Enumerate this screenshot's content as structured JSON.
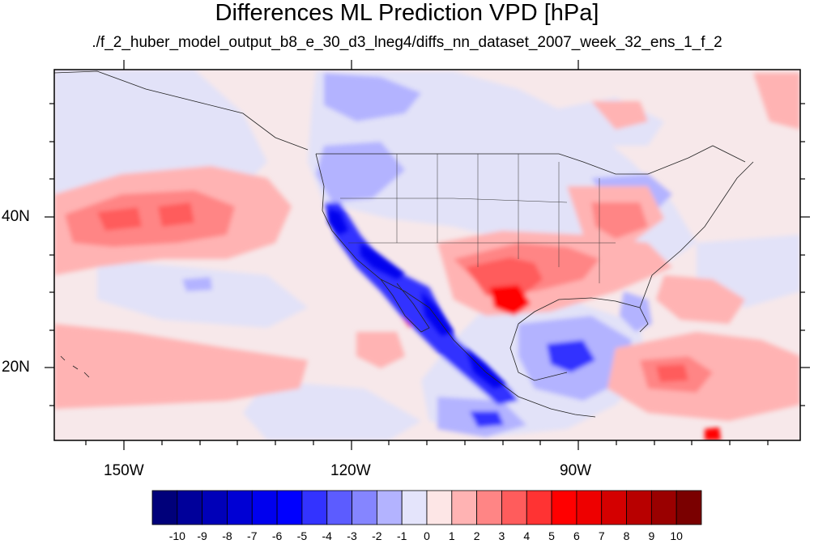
{
  "title": "Differences ML Prediction VPD [hPa]",
  "subtitle": "./f_2_huber_model_output_b8_e_30_d3_lneg4/diffs_nn_dataset_2007_week_32_ens_1_f_2",
  "axes": {
    "lon_labels": [
      "150W",
      "120W",
      "90W"
    ],
    "lat_labels": [
      "40N",
      "20N"
    ]
  },
  "colorbar": {
    "labels": [
      "-10",
      "-9",
      "-8",
      "-7",
      "-6",
      "-5",
      "-4",
      "-3",
      "-2",
      "-1",
      "0",
      "1",
      "2",
      "3",
      "4",
      "5",
      "6",
      "7",
      "8",
      "9",
      "10"
    ],
    "colors": [
      "#00007a",
      "#00009a",
      "#0000b8",
      "#0000d4",
      "#0000ee",
      "#0000ff",
      "#3333ff",
      "#5c5cff",
      "#8585ff",
      "#b3b3ff",
      "#e4e4fb",
      "#fde6e6",
      "#ffb3b3",
      "#ff8585",
      "#ff5c5c",
      "#ff3333",
      "#ff0000",
      "#ee0000",
      "#d40000",
      "#b80000",
      "#9a0000",
      "#7a0000"
    ]
  },
  "map": {
    "region": "North Pacific / North America",
    "background_color": "#f7e8ea",
    "colors": {
      "light_blue": "#e2e2f8",
      "mid_blue": "#b3b3ff",
      "blue": "#8585ff",
      "strong_blue": "#3333ff",
      "deep_blue": "#0000ee",
      "light_red": "#ffb3b3",
      "red": "#ff8585",
      "strong_red": "#ff5c5c",
      "deep_red": "#ff0000"
    }
  }
}
